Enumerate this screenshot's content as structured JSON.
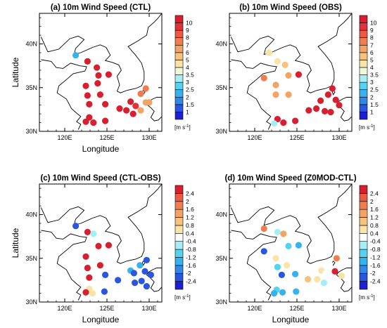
{
  "colormaps": {
    "speed": {
      "labels": [
        "1",
        "1.5",
        "2",
        "2.5",
        "3",
        "3.5",
        "4",
        "5",
        "6",
        "7",
        "8",
        "9",
        "10"
      ],
      "colors": [
        "#1c1fd2",
        "#2a55e0",
        "#2f88ea",
        "#36b2ee",
        "#54d2ef",
        "#a6eef5",
        "#eef8d8",
        "#f9e3a5",
        "#f7c27c",
        "#f3a364",
        "#ef7d4f",
        "#ec5a44",
        "#e3303a",
        "#d81f2f"
      ]
    },
    "diff": {
      "labels": [
        "-2.4",
        "-2",
        "-1.6",
        "-1.2",
        "-0.8",
        "-0.4",
        "0.4",
        "0.8",
        "1.2",
        "1.6",
        "2",
        "2.4"
      ],
      "colors": [
        "#1c1fd2",
        "#2a55e0",
        "#2f88ea",
        "#36b2ee",
        "#54d2ef",
        "#a6eef5",
        "#ffffff",
        "#f9e3a5",
        "#f7c27c",
        "#f3a364",
        "#ef7d4f",
        "#ec5a44",
        "#d81f2f"
      ]
    }
  },
  "unit_label": "[m s",
  "unit_sup": "-1",
  "unit_close": "]",
  "chart_data": [
    {
      "type": "scatter",
      "title": "(a) 10m Wind Speed (CTL)",
      "xlabel": "Longitude",
      "ylabel": "Latitude",
      "xlim": [
        117,
        131.5
      ],
      "ylim": [
        30,
        43.5
      ],
      "xticks": [
        {
          "v": 120,
          "t": "120E"
        },
        {
          "v": 125,
          "t": "125E"
        },
        {
          "v": 130,
          "t": "130E"
        }
      ],
      "yticks": [
        {
          "v": 30,
          "t": "30N"
        },
        {
          "v": 35,
          "t": "35N"
        },
        {
          "v": 40,
          "t": "40N"
        }
      ],
      "colormap": "speed",
      "points": [
        {
          "lon": 121.3,
          "lat": 38.7,
          "value": 2
        },
        {
          "lon": 122.7,
          "lat": 38.0,
          "value": 10
        },
        {
          "lon": 123.8,
          "lat": 37.3,
          "value": 10
        },
        {
          "lon": 124.0,
          "lat": 36.4,
          "value": 10
        },
        {
          "lon": 125.2,
          "lat": 36.5,
          "value": 10
        },
        {
          "lon": 123.9,
          "lat": 35.5,
          "value": 10
        },
        {
          "lon": 122.5,
          "lat": 35.2,
          "value": 10
        },
        {
          "lon": 122.7,
          "lat": 34.1,
          "value": 10
        },
        {
          "lon": 124.2,
          "lat": 34.2,
          "value": 10
        },
        {
          "lon": 122.9,
          "lat": 33.1,
          "value": 10
        },
        {
          "lon": 124.8,
          "lat": 33.1,
          "value": 10
        },
        {
          "lon": 122.9,
          "lat": 31.6,
          "value": 10
        },
        {
          "lon": 122.5,
          "lat": 31.1,
          "value": 10
        },
        {
          "lon": 123.4,
          "lat": 31.0,
          "value": 10
        },
        {
          "lon": 124.8,
          "lat": 31.2,
          "value": 10
        },
        {
          "lon": 126.5,
          "lat": 32.6,
          "value": 10
        },
        {
          "lon": 127.3,
          "lat": 32.4,
          "value": 10
        },
        {
          "lon": 127.8,
          "lat": 33.4,
          "value": 10
        },
        {
          "lon": 128.4,
          "lat": 32.9,
          "value": 9
        },
        {
          "lon": 128.1,
          "lat": 32.0,
          "value": 10
        },
        {
          "lon": 129.0,
          "lat": 34.3,
          "value": 7
        },
        {
          "lon": 129.6,
          "lat": 34.9,
          "value": 7
        },
        {
          "lon": 129.6,
          "lat": 33.3,
          "value": 6
        },
        {
          "lon": 129.0,
          "lat": 32.4,
          "value": 6
        },
        {
          "lon": 130.0,
          "lat": 33.3,
          "value": 6
        }
      ]
    },
    {
      "type": "scatter",
      "title": "(b) 10m Wind Speed (OBS)",
      "xlabel": "",
      "ylabel": "",
      "xlim": [
        117,
        131.5
      ],
      "ylim": [
        30,
        43.5
      ],
      "xticks": [
        {
          "v": 120,
          "t": "120E"
        },
        {
          "v": 125,
          "t": "125E"
        },
        {
          "v": 130,
          "t": "130E"
        }
      ],
      "yticks": [
        {
          "v": 30,
          "t": "30N"
        },
        {
          "v": 35,
          "t": "35N"
        },
        {
          "v": 40,
          "t": "40N"
        }
      ],
      "colormap": "speed",
      "points": [
        {
          "lon": 121.7,
          "lat": 39.0,
          "value": 4.5
        },
        {
          "lon": 122.7,
          "lat": 38.0,
          "value": 4.5
        },
        {
          "lon": 123.6,
          "lat": 37.6,
          "value": 5
        },
        {
          "lon": 124.0,
          "lat": 36.4,
          "value": 6
        },
        {
          "lon": 125.2,
          "lat": 36.5,
          "value": 10
        },
        {
          "lon": 121.1,
          "lat": 36.1,
          "value": 7
        },
        {
          "lon": 122.5,
          "lat": 35.3,
          "value": 6
        },
        {
          "lon": 122.5,
          "lat": 34.2,
          "value": 6
        },
        {
          "lon": 124.0,
          "lat": 34.2,
          "value": 6
        },
        {
          "lon": 122.7,
          "lat": 31.4,
          "value": 10
        },
        {
          "lon": 123.4,
          "lat": 31.0,
          "value": 10
        },
        {
          "lon": 122.3,
          "lat": 30.9,
          "value": 3
        },
        {
          "lon": 124.8,
          "lat": 31.2,
          "value": 10
        },
        {
          "lon": 126.4,
          "lat": 32.4,
          "value": 10
        },
        {
          "lon": 127.3,
          "lat": 32.6,
          "value": 10
        },
        {
          "lon": 127.8,
          "lat": 33.5,
          "value": 10
        },
        {
          "lon": 128.3,
          "lat": 32.3,
          "value": 10
        },
        {
          "lon": 128.7,
          "lat": 34.2,
          "value": 10
        },
        {
          "lon": 129.2,
          "lat": 34.9,
          "value": 10
        },
        {
          "lon": 129.6,
          "lat": 33.6,
          "value": 10
        },
        {
          "lon": 129.0,
          "lat": 32.2,
          "value": 10
        },
        {
          "lon": 130.0,
          "lat": 33.0,
          "value": 10
        }
      ]
    },
    {
      "type": "scatter",
      "title": "(c) 10m Wind Speed (CTL-OBS)",
      "xlabel": "Longitude",
      "ylabel": "Latitude",
      "xlim": [
        117,
        131.5
      ],
      "ylim": [
        30,
        43.5
      ],
      "xticks": [
        {
          "v": 120,
          "t": "120E"
        },
        {
          "v": 125,
          "t": "125E"
        },
        {
          "v": 130,
          "t": "130E"
        }
      ],
      "yticks": [
        {
          "v": 30,
          "t": "30N"
        },
        {
          "v": 35,
          "t": "35N"
        },
        {
          "v": 40,
          "t": "40N"
        }
      ],
      "colormap": "diff",
      "points": [
        {
          "lon": 121.3,
          "lat": 38.7,
          "value": -2.4
        },
        {
          "lon": 122.7,
          "lat": 38.0,
          "value": 2.4
        },
        {
          "lon": 123.4,
          "lat": 37.8,
          "value": -0.6
        },
        {
          "lon": 124.0,
          "lat": 36.4,
          "value": 2.4
        },
        {
          "lon": 125.2,
          "lat": 36.5,
          "value": 2.4
        },
        {
          "lon": 121.1,
          "lat": 36.0,
          "value": -0.3
        },
        {
          "lon": 122.5,
          "lat": 35.2,
          "value": 2.4
        },
        {
          "lon": 122.7,
          "lat": 33.9,
          "value": 2.4
        },
        {
          "lon": 124.2,
          "lat": 34.2,
          "value": 2.4
        },
        {
          "lon": 122.9,
          "lat": 32.8,
          "value": 2.4
        },
        {
          "lon": 124.8,
          "lat": 33.1,
          "value": -2.4
        },
        {
          "lon": 122.9,
          "lat": 31.5,
          "value": 0.6
        },
        {
          "lon": 122.5,
          "lat": 31.1,
          "value": 2.4
        },
        {
          "lon": 123.3,
          "lat": 31.0,
          "value": 0.5
        },
        {
          "lon": 124.7,
          "lat": 31.2,
          "value": -2.4
        },
        {
          "lon": 126.3,
          "lat": 32.5,
          "value": -2.4
        },
        {
          "lon": 127.8,
          "lat": 33.6,
          "value": -1.4
        },
        {
          "lon": 128.2,
          "lat": 33.3,
          "value": -2.4
        },
        {
          "lon": 128.3,
          "lat": 32.2,
          "value": -2.4
        },
        {
          "lon": 128.9,
          "lat": 34.2,
          "value": -1.5
        },
        {
          "lon": 129.7,
          "lat": 34.8,
          "value": -2.4
        },
        {
          "lon": 129.5,
          "lat": 33.5,
          "value": -2.4
        },
        {
          "lon": 129.1,
          "lat": 32.4,
          "value": -2.2
        },
        {
          "lon": 130.2,
          "lat": 33.1,
          "value": -2.4
        },
        {
          "lon": 129.7,
          "lat": 31.8,
          "value": -2.4
        }
      ]
    },
    {
      "type": "scatter",
      "title": "(d) 10m Wind Speed (Z0MOD-CTL)",
      "xlabel": "Longitude",
      "ylabel": "",
      "xlim": [
        117,
        131.5
      ],
      "ylim": [
        30,
        43.5
      ],
      "xticks": [
        {
          "v": 120,
          "t": "120E"
        },
        {
          "v": 125,
          "t": "125E"
        },
        {
          "v": 130,
          "t": "130E"
        }
      ],
      "yticks": [
        {
          "v": 30,
          "t": "30N"
        },
        {
          "v": 35,
          "t": "35N"
        },
        {
          "v": 40,
          "t": "40N"
        }
      ],
      "colormap": "diff",
      "points": [
        {
          "lon": 121.1,
          "lat": 38.4,
          "value": 1.8
        },
        {
          "lon": 122.7,
          "lat": 38.0,
          "value": -0.6
        },
        {
          "lon": 123.4,
          "lat": 37.8,
          "value": 1.2
        },
        {
          "lon": 124.0,
          "lat": 36.4,
          "value": -1.2
        },
        {
          "lon": 125.2,
          "lat": 36.5,
          "value": -1.6
        },
        {
          "lon": 121.1,
          "lat": 35.8,
          "value": -2.4
        },
        {
          "lon": 122.5,
          "lat": 35.0,
          "value": 0.6
        },
        {
          "lon": 122.7,
          "lat": 34.0,
          "value": -0.9
        },
        {
          "lon": 123.8,
          "lat": 34.2,
          "value": 0.5
        },
        {
          "lon": 123.2,
          "lat": 33.1,
          "value": -2.2
        },
        {
          "lon": 124.8,
          "lat": 33.2,
          "value": -1.6
        },
        {
          "lon": 122.6,
          "lat": 31.4,
          "value": -1.2
        },
        {
          "lon": 122.3,
          "lat": 31.0,
          "value": -1.5
        },
        {
          "lon": 123.3,
          "lat": 31.1,
          "value": -1.3
        },
        {
          "lon": 124.9,
          "lat": 31.2,
          "value": -1.4
        },
        {
          "lon": 126.3,
          "lat": 32.6,
          "value": 0.8
        },
        {
          "lon": 127.4,
          "lat": 32.6,
          "value": 0.4
        },
        {
          "lon": 127.9,
          "lat": 33.6,
          "value": 0.5
        },
        {
          "lon": 128.4,
          "lat": 33.3,
          "value": 0.3
        },
        {
          "lon": 128.2,
          "lat": 32.2,
          "value": -0.5
        },
        {
          "lon": 128.9,
          "lat": 34.3,
          "value": 0.3
        },
        {
          "lon": 129.7,
          "lat": 35.0,
          "value": 1.6
        },
        {
          "lon": 129.5,
          "lat": 33.5,
          "value": 2.4
        },
        {
          "lon": 129.1,
          "lat": 32.1,
          "value": -0.4
        },
        {
          "lon": 129.7,
          "lat": 31.6,
          "value": -0.4
        },
        {
          "lon": 130.3,
          "lat": 33.0,
          "value": 0.4
        },
        {
          "lon": 129.9,
          "lat": 31.0,
          "value": -0.4
        }
      ]
    }
  ]
}
